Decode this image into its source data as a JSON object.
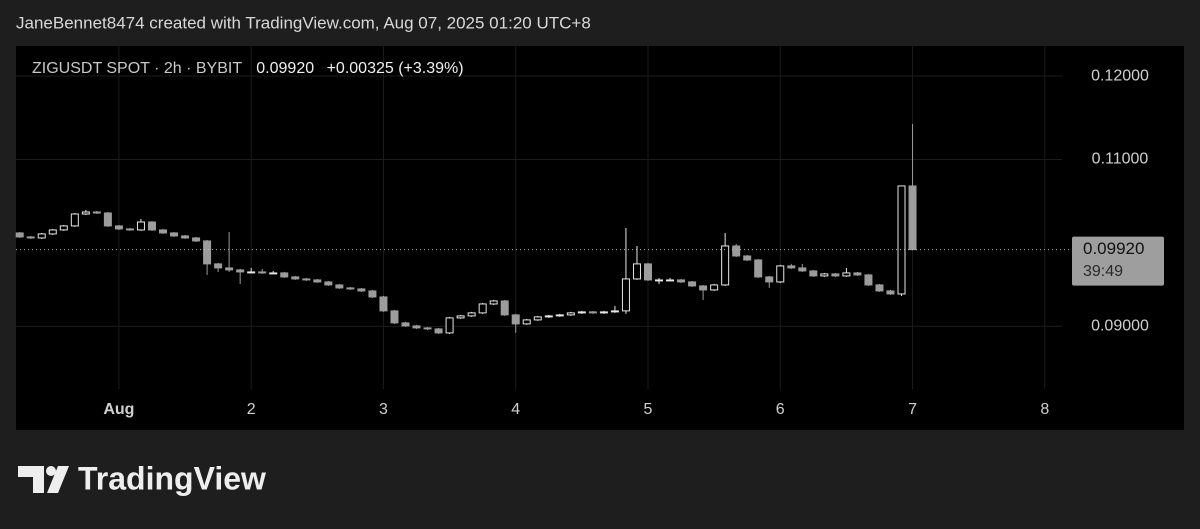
{
  "header": {
    "attribution": "JaneBennet8474 created with TradingView.com, Aug 07, 2025 01:20 UTC+8"
  },
  "chart_data": {
    "type": "candlestick",
    "symbol": "ZIGUSDT SPOT · 2h · BYBIT",
    "last": {
      "value": 0.0992,
      "label": "0.09920"
    },
    "change": "+0.00325 (+3.39%)",
    "countdown": "39:49",
    "up_color": "#e6e6e6",
    "down_color": "#9c9c9c",
    "grid": true,
    "xlim": [
      0.222,
      8.13
    ],
    "xticks": [
      {
        "value": 1,
        "label": "Aug"
      },
      2,
      3,
      4,
      5,
      6,
      7,
      8
    ],
    "ylim": [
      0.0825,
      0.1236
    ],
    "yticks": [
      {
        "value": 0.09,
        "label": "0.09000"
      },
      {
        "value": 0.11,
        "label": "0.11000"
      },
      {
        "value": 0.12,
        "label": "0.12000"
      }
    ],
    "x": [
      0.25,
      0.3333,
      0.4167,
      0.5,
      0.5833,
      0.6667,
      0.75,
      0.8333,
      0.9167,
      1,
      1.0833,
      1.1667,
      1.25,
      1.3333,
      1.4167,
      1.5,
      1.5833,
      1.6667,
      1.75,
      1.8333,
      1.9167,
      2,
      2.0833,
      2.1667,
      2.25,
      2.3333,
      2.4167,
      2.5,
      2.5833,
      2.6667,
      2.75,
      2.8333,
      2.9167,
      3,
      3.0833,
      3.1667,
      3.25,
      3.3333,
      3.4167,
      3.5,
      3.5833,
      3.6667,
      3.75,
      3.8333,
      3.9167,
      4,
      4.0833,
      4.1667,
      4.25,
      4.3333,
      4.4167,
      4.5,
      4.5833,
      4.6667,
      4.75,
      4.8333,
      4.9167,
      5,
      5.0833,
      5.1667,
      5.25,
      5.3333,
      5.4167,
      5.5,
      5.5833,
      5.6667,
      5.75,
      5.8333,
      5.9167,
      6,
      6.0833,
      6.1667,
      6.25,
      6.3333,
      6.4167,
      6.5,
      6.5833,
      6.6667,
      6.75,
      6.8333,
      6.9167,
      7
    ],
    "open": [
      0.1012,
      0.10072,
      0.1006,
      0.10108,
      0.10156,
      0.10204,
      0.10347,
      0.10371,
      0.10359,
      0.10204,
      0.10168,
      0.10156,
      0.10251,
      0.10156,
      0.1012,
      0.10084,
      0.1006,
      0.10024,
      0.09749,
      0.09701,
      0.09677,
      0.09653,
      0.09653,
      0.09641,
      0.09641,
      0.09593,
      0.09569,
      0.09557,
      0.09533,
      0.09497,
      0.09461,
      0.09449,
      0.09425,
      0.09353,
      0.09186,
      0.09042,
      0.09006,
      0.08982,
      0.0897,
      0.08922,
      0.09102,
      0.09126,
      0.09162,
      0.09269,
      0.09305,
      0.09138,
      0.0903,
      0.09078,
      0.09114,
      0.09126,
      0.09138,
      0.09162,
      0.09174,
      0.09162,
      0.09174,
      0.09186,
      0.09569,
      0.09749,
      0.09557,
      0.09557,
      0.09557,
      0.09533,
      0.09485,
      0.09437,
      0.09497,
      0.09964,
      0.09844,
      0.09796,
      0.09593,
      0.09533,
      0.09725,
      0.09701,
      0.09665,
      0.09605,
      0.09629,
      0.09605,
      0.09641,
      0.09617,
      0.09497,
      0.09425,
      0.09389,
      0.10683
    ],
    "high": [
      0.10132,
      0.10084,
      0.1012,
      0.10168,
      0.10216,
      0.10359,
      0.10395,
      0.10383,
      0.10371,
      0.10216,
      0.1018,
      0.10287,
      0.10263,
      0.10168,
      0.10132,
      0.10096,
      0.10072,
      0.10036,
      0.09761,
      0.10132,
      0.09689,
      0.09701,
      0.09689,
      0.09665,
      0.09653,
      0.09605,
      0.09581,
      0.09569,
      0.09545,
      0.09509,
      0.09473,
      0.09461,
      0.09437,
      0.09365,
      0.09198,
      0.09054,
      0.09018,
      0.08994,
      0.08982,
      0.09114,
      0.09138,
      0.09174,
      0.09281,
      0.09317,
      0.09317,
      0.0915,
      0.0909,
      0.09126,
      0.09138,
      0.0915,
      0.09174,
      0.09186,
      0.09186,
      0.09186,
      0.09246,
      0.1018,
      0.09964,
      0.09761,
      0.09581,
      0.09581,
      0.09569,
      0.09545,
      0.09497,
      0.09509,
      0.1012,
      0.09988,
      0.09856,
      0.09808,
      0.09605,
      0.09737,
      0.09749,
      0.09749,
      0.09677,
      0.09641,
      0.09641,
      0.09701,
      0.09653,
      0.09629,
      0.09509,
      0.09437,
      0.10683,
      0.11425
    ],
    "low": [
      0.1006,
      0.10048,
      0.10048,
      0.10096,
      0.10144,
      0.10192,
      0.10335,
      0.10347,
      0.10192,
      0.10156,
      0.10144,
      0.10144,
      0.10144,
      0.10108,
      0.10072,
      0.10048,
      0.10012,
      0.09617,
      0.09653,
      0.09653,
      0.09509,
      0.09641,
      0.09629,
      0.09629,
      0.09581,
      0.09557,
      0.09545,
      0.09521,
      0.09485,
      0.09449,
      0.09437,
      0.09413,
      0.09341,
      0.09174,
      0.0903,
      0.08994,
      0.0897,
      0.08958,
      0.0891,
      0.0891,
      0.0909,
      0.09114,
      0.0915,
      0.09257,
      0.09126,
      0.08922,
      0.09018,
      0.09066,
      0.09102,
      0.09114,
      0.09126,
      0.0915,
      0.0915,
      0.0915,
      0.09162,
      0.0915,
      0.09557,
      0.09545,
      0.09509,
      0.09545,
      0.09521,
      0.09473,
      0.09317,
      0.09425,
      0.09485,
      0.09832,
      0.09784,
      0.09581,
      0.09461,
      0.09521,
      0.09689,
      0.09653,
      0.09593,
      0.09593,
      0.09593,
      0.09593,
      0.09605,
      0.09485,
      0.09413,
      0.09377,
      0.09365,
      0.0992
    ],
    "close": [
      0.10072,
      0.1006,
      0.10108,
      0.10156,
      0.10204,
      0.10347,
      0.10371,
      0.10359,
      0.10204,
      0.10168,
      0.10156,
      0.10251,
      0.10156,
      0.1012,
      0.10084,
      0.1006,
      0.10024,
      0.09749,
      0.09701,
      0.09677,
      0.09653,
      0.09653,
      0.09641,
      0.09641,
      0.09593,
      0.09569,
      0.09557,
      0.09533,
      0.09497,
      0.09461,
      0.09449,
      0.09425,
      0.09353,
      0.09186,
      0.09042,
      0.09006,
      0.08982,
      0.0897,
      0.08922,
      0.09102,
      0.09126,
      0.09162,
      0.09269,
      0.09305,
      0.09138,
      0.0903,
      0.09078,
      0.09114,
      0.09126,
      0.09138,
      0.09162,
      0.09174,
      0.09162,
      0.09174,
      0.09186,
      0.09569,
      0.09749,
      0.09557,
      0.09557,
      0.09557,
      0.09533,
      0.09485,
      0.09437,
      0.09497,
      0.09964,
      0.09844,
      0.09796,
      0.09593,
      0.09533,
      0.09725,
      0.09701,
      0.09665,
      0.09605,
      0.09629,
      0.09605,
      0.09641,
      0.09617,
      0.09497,
      0.09425,
      0.09389,
      0.10683,
      0.0992
    ]
  },
  "footer": {
    "brand": "TradingView"
  }
}
